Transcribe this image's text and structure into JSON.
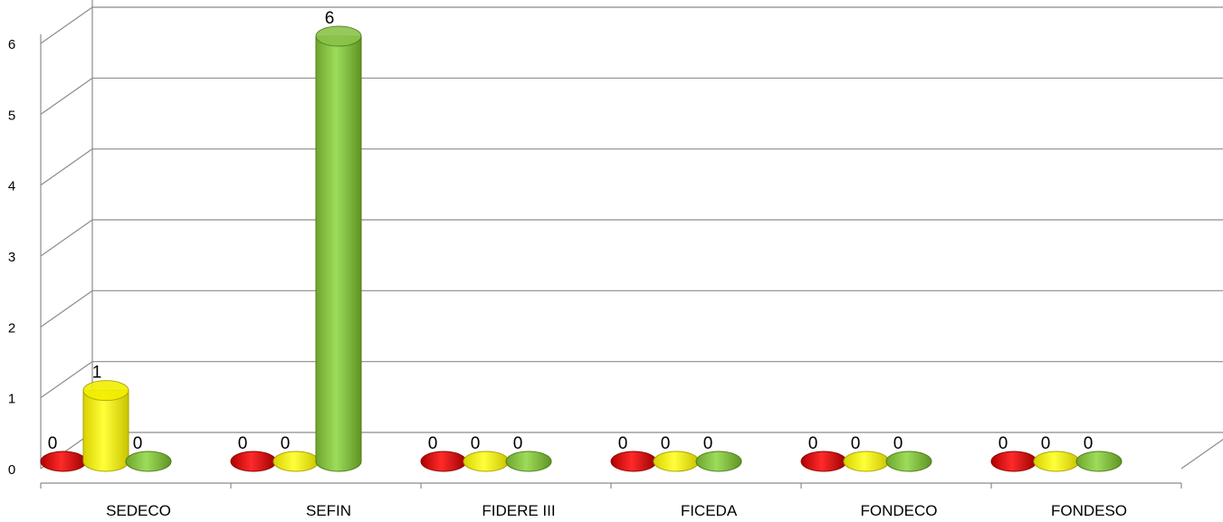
{
  "chart_data": {
    "type": "bar",
    "categories": [
      "SEDECO",
      "SEFIN",
      "FIDERE III",
      "FICEDA",
      "FONDECO",
      "FONDESO"
    ],
    "series": [
      {
        "values": [
          0,
          0,
          0,
          0,
          0,
          0
        ],
        "color": "#e00000"
      },
      {
        "values": [
          1,
          0,
          0,
          0,
          0,
          0
        ],
        "color": "#f2ef00"
      },
      {
        "values": [
          0,
          6,
          0,
          0,
          0,
          0
        ],
        "color": "#8bc34a"
      }
    ],
    "yticks": [
      "0",
      "1",
      "2",
      "3",
      "4",
      "5",
      "6"
    ],
    "ylim": [
      0,
      6
    ],
    "grid": true,
    "legend": "none",
    "style": "3d-cylinder"
  }
}
